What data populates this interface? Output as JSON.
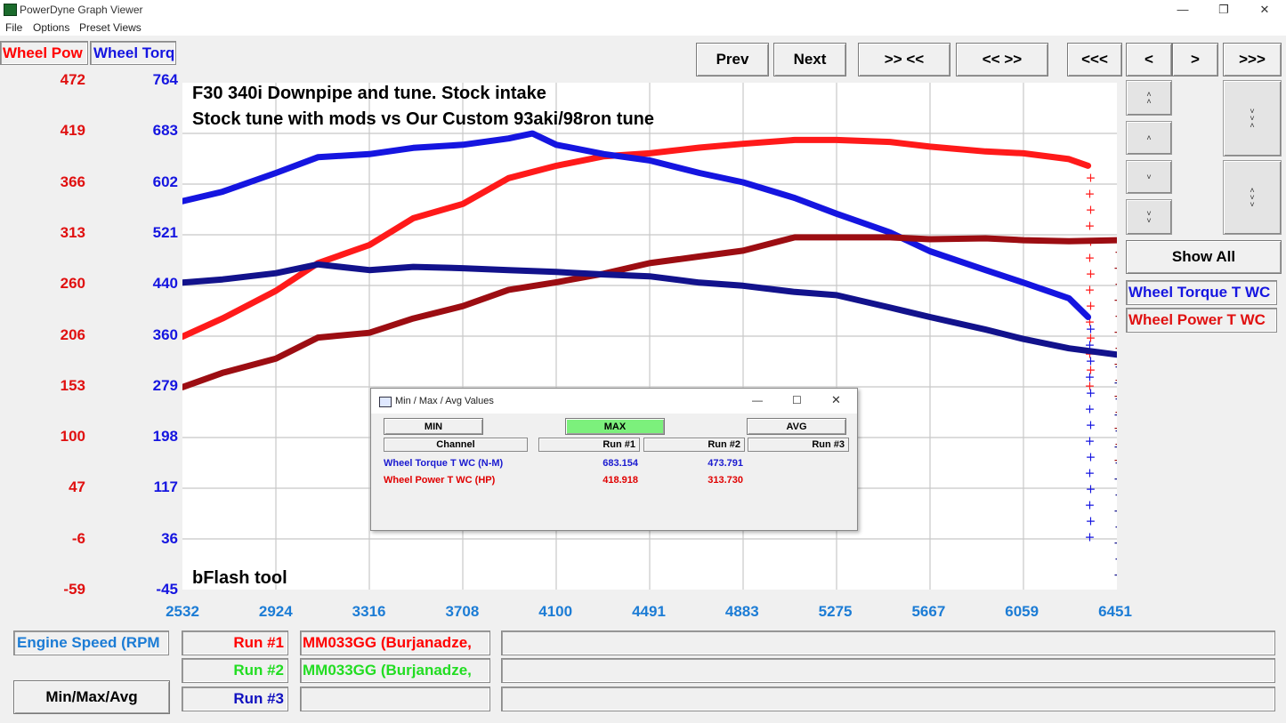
{
  "window": {
    "title": "PowerDyne Graph Viewer",
    "min": "—",
    "max": "❐",
    "close": "✕"
  },
  "menu": [
    "File",
    "Options",
    "Preset Views"
  ],
  "legend_top": {
    "power": "Wheel Pow",
    "torque": "Wheel Torq"
  },
  "y_left_ticks": [
    "472",
    "419",
    "366",
    "313",
    "260",
    "206",
    "153",
    "100",
    "47",
    "-6",
    "-59"
  ],
  "y_right_ticks": [
    "764",
    "683",
    "602",
    "521",
    "440",
    "360",
    "279",
    "198",
    "117",
    "36",
    "-45"
  ],
  "x_ticks": [
    "2532",
    "2924",
    "3316",
    "3708",
    "4100",
    "4491",
    "4883",
    "5275",
    "5667",
    "6059",
    "6451"
  ],
  "nav": {
    "prev": "Prev",
    "next": "Next",
    "zoom_in": ">> <<",
    "zoom_out": "<< >>",
    "first": "<<<",
    "left": "<",
    "right": ">",
    "last": ">>>"
  },
  "side": {
    "show_all": "Show All",
    "torque_channel": "Wheel Torque T WC",
    "power_channel": "Wheel Power T WC"
  },
  "annotations": {
    "line1": "F30 340i Downpipe and tune. Stock intake",
    "line2": "Stock tune with mods vs Our Custom 93aki/98ron tune",
    "footer": "bFlash tool"
  },
  "bottom": {
    "x_channel": "Engine Speed (RPM",
    "minmax_button": "Min/Max/Avg",
    "runs": [
      {
        "label": "Run #1",
        "name": "MM033GG (Burjanadze,",
        "color": "#ff0000"
      },
      {
        "label": "Run #2",
        "name": "MM033GG (Burjanadze,",
        "color": "#22dd22"
      },
      {
        "label": "Run #3",
        "name": "",
        "color": "#1010c0"
      }
    ]
  },
  "dialog": {
    "title": "Min / Max / Avg Values",
    "buttons": {
      "min": "MIN",
      "max": "MAX",
      "avg": "AVG"
    },
    "headers": [
      "Channel",
      "Run #1",
      "Run #2",
      "Run #3"
    ],
    "rows": [
      {
        "channel": "Wheel Torque T WC (N-M)",
        "run1": "683.154",
        "run2": "473.791",
        "run3": "",
        "color": "#1a1ad0"
      },
      {
        "channel": "Wheel Power T WC (HP)",
        "run1": "418.918",
        "run2": "313.730",
        "run3": "",
        "color": "#e00000"
      }
    ]
  },
  "colors": {
    "power_run1": "#ff1a1a",
    "torque_run1": "#1515e0",
    "power_run2": "#9c0d12",
    "torque_run2": "#12128c",
    "max_button": "#7cf07c"
  },
  "chart_data": {
    "type": "line",
    "xlabel": "Engine Speed (RPM",
    "xlim": [
      2532,
      6451
    ],
    "ylim_power": [
      -59,
      472
    ],
    "ylim_torque": [
      -45,
      764
    ],
    "series": [
      {
        "name": "Wheel Power T WC",
        "axis": "power",
        "run": "Run #1",
        "x": [
          2532,
          2700,
          2924,
          3100,
          3316,
          3500,
          3708,
          3900,
          4100,
          4300,
          4491,
          4700,
          4883,
          5100,
          5275,
          5500,
          5667,
          5900,
          6059,
          6250,
          6330
        ],
        "y": [
          206,
          225,
          254,
          283,
          302,
          330,
          345,
          372,
          385,
          395,
          398,
          404,
          408,
          412,
          412,
          410,
          405,
          400,
          398,
          392,
          385
        ]
      },
      {
        "name": "Wheel Torque T WC",
        "axis": "torque",
        "run": "Run #1",
        "x": [
          2532,
          2700,
          2924,
          3100,
          3316,
          3500,
          3708,
          3900,
          4000,
          4100,
          4300,
          4491,
          4700,
          4883,
          5100,
          5275,
          5500,
          5667,
          5900,
          6059,
          6250,
          6330
        ],
        "y": [
          575,
          590,
          620,
          645,
          650,
          660,
          665,
          675,
          683,
          665,
          650,
          640,
          620,
          605,
          580,
          555,
          525,
          495,
          465,
          445,
          420,
          390
        ]
      },
      {
        "name": "Wheel Power T WC",
        "axis": "power",
        "run": "Run #2",
        "x": [
          2532,
          2700,
          2924,
          3100,
          3316,
          3500,
          3708,
          3900,
          4100,
          4300,
          4491,
          4700,
          4883,
          5100,
          5275,
          5500,
          5667,
          5900,
          6059,
          6250,
          6451
        ],
        "y": [
          153,
          168,
          183,
          205,
          210,
          225,
          238,
          255,
          263,
          272,
          283,
          290,
          296,
          310,
          310,
          310,
          308,
          309,
          307,
          306,
          307
        ]
      },
      {
        "name": "Wheel Torque T WC",
        "axis": "torque",
        "run": "Run #2",
        "x": [
          2532,
          2700,
          2924,
          3100,
          3316,
          3500,
          3708,
          3900,
          4100,
          4300,
          4491,
          4700,
          4883,
          5100,
          5275,
          5500,
          5667,
          5900,
          6059,
          6250,
          6451
        ],
        "y": [
          445,
          450,
          460,
          474,
          465,
          470,
          468,
          465,
          462,
          458,
          455,
          445,
          440,
          430,
          425,
          405,
          390,
          370,
          355,
          340,
          330
        ]
      }
    ]
  }
}
